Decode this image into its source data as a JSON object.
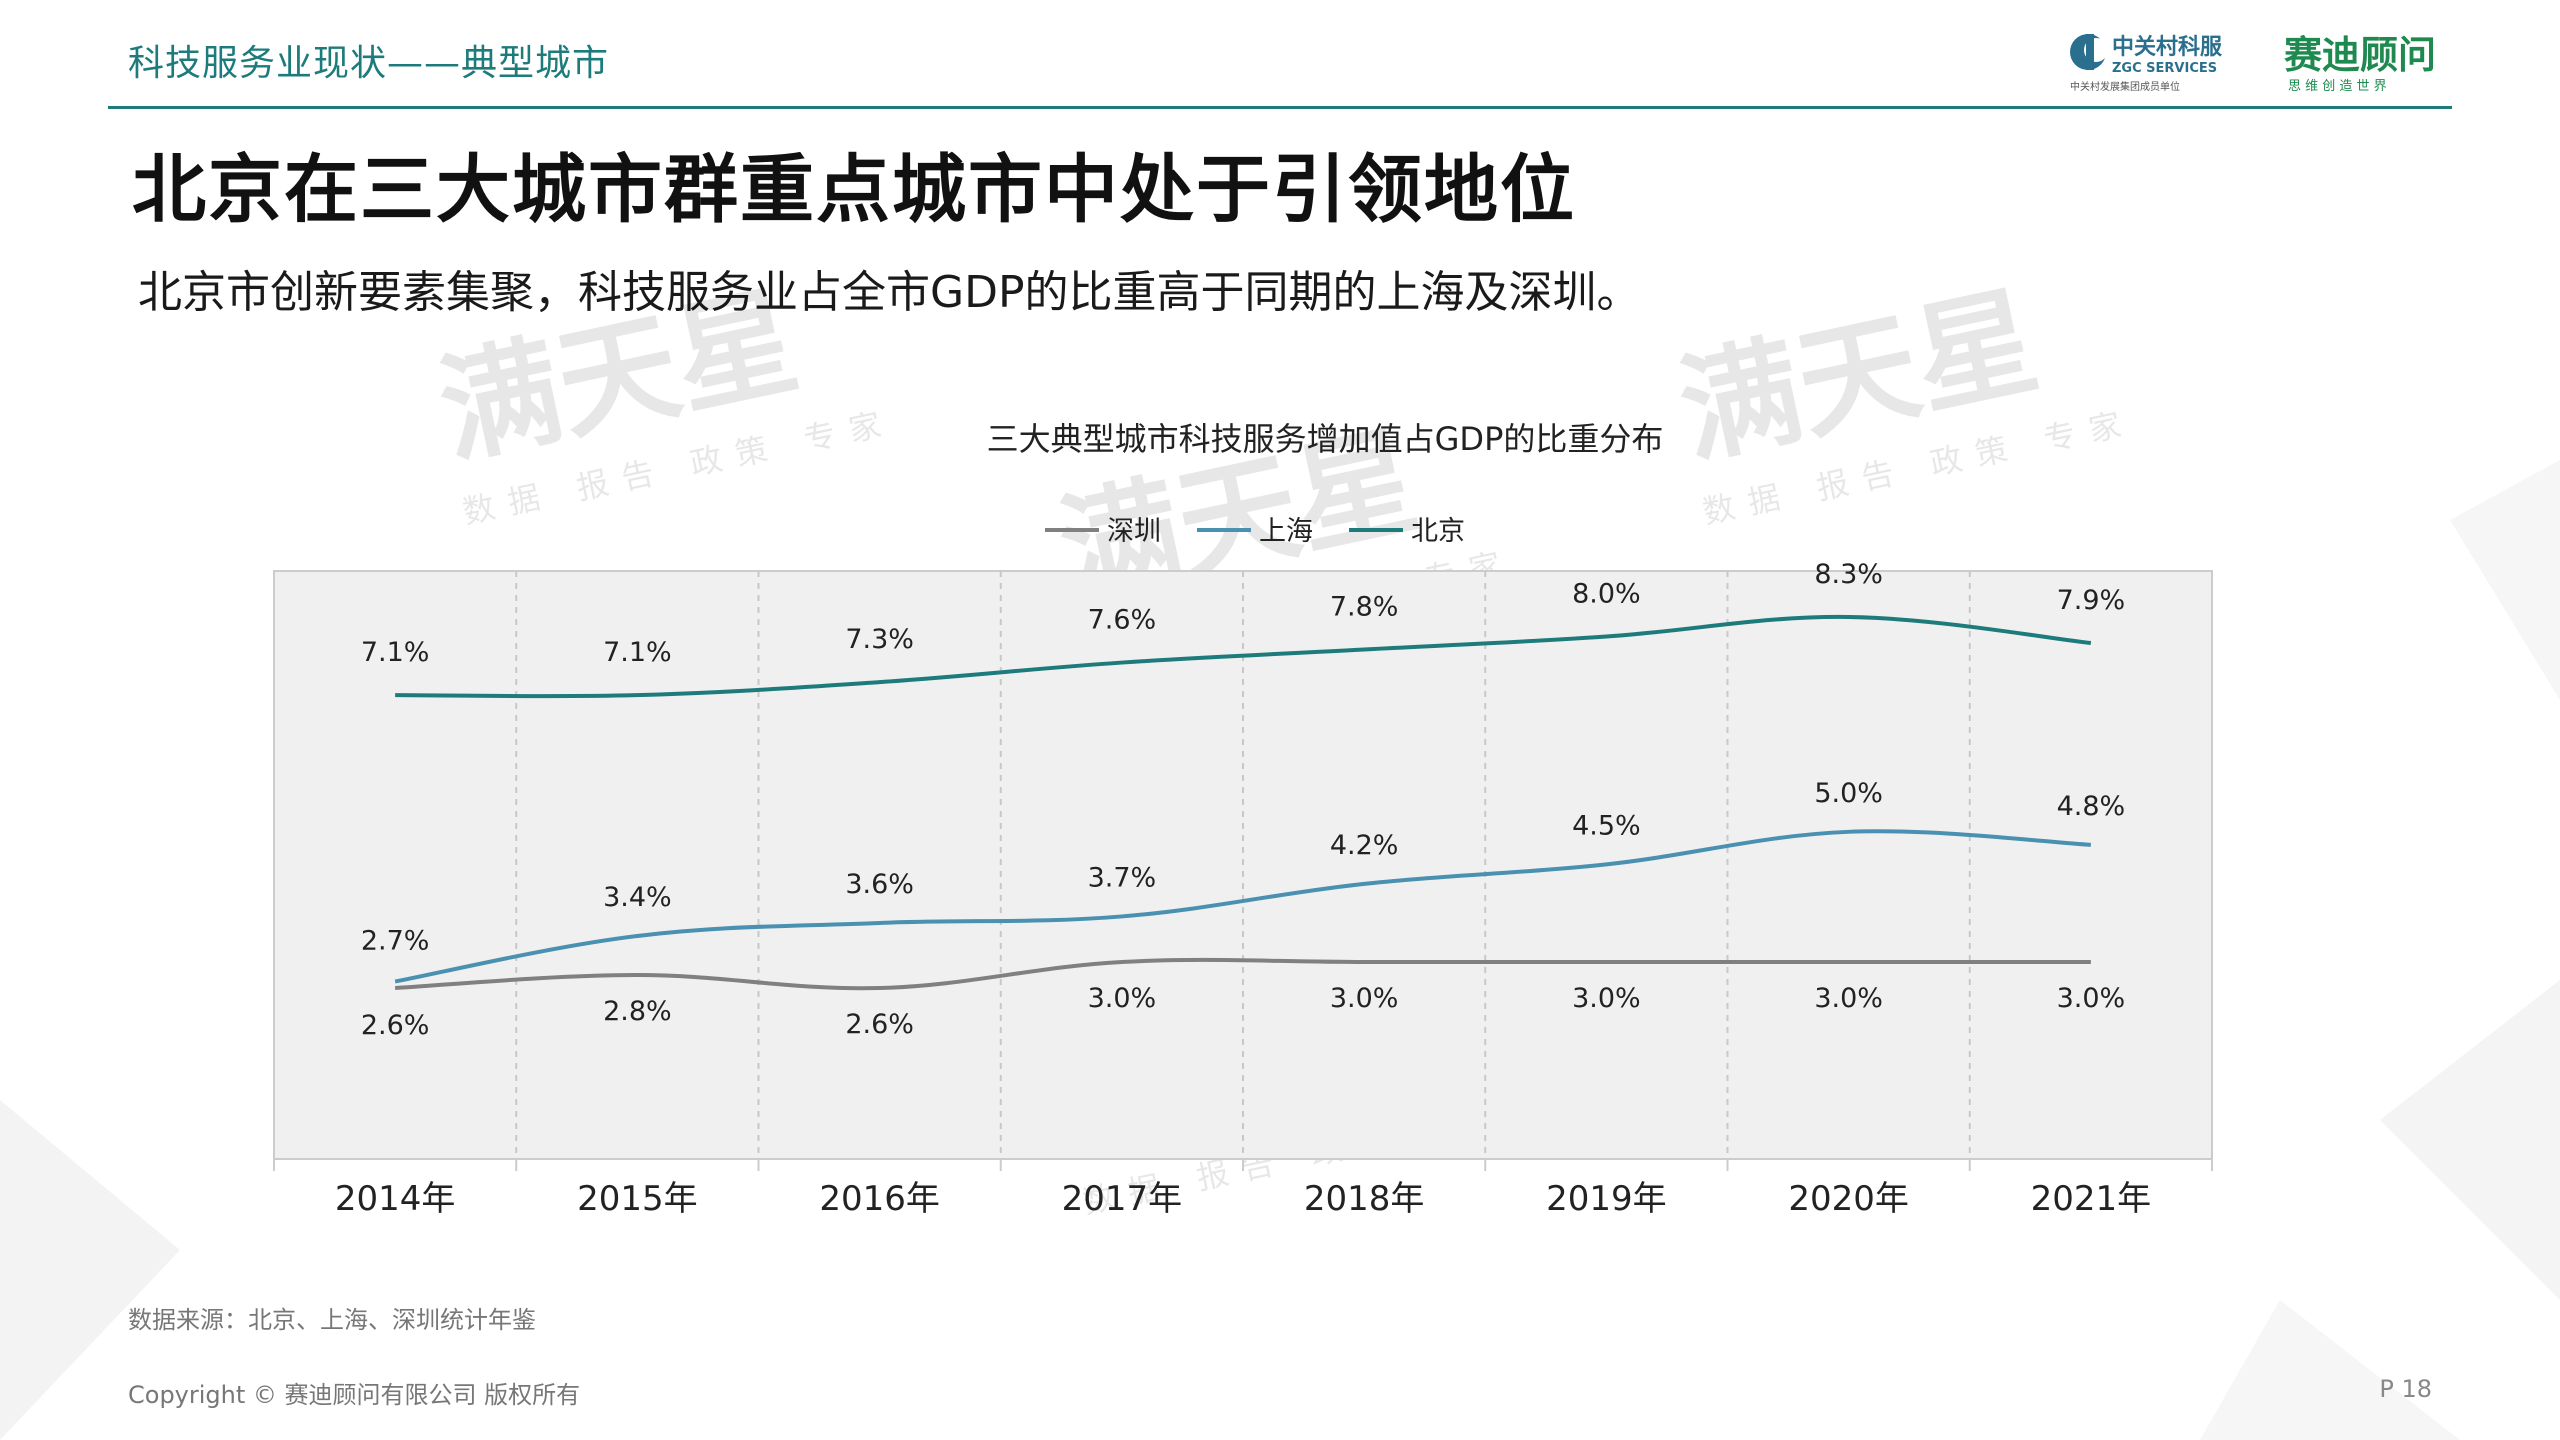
{
  "header": {
    "section_title": "科技服务业现状——典型城市",
    "logo_zgc_name": "中关村科服",
    "logo_zgc_en": "ZGC SERVICES",
    "logo_zgc_sub": "中关村发展集团成员单位",
    "logo_ccid_name": "赛迪顾问",
    "logo_ccid_slogan": "思 维 创 造 世 界"
  },
  "slide": {
    "title": "北京在三大城市群重点城市中处于引领地位",
    "subtitle": "北京市创新要素集聚，科技服务业占全市GDP的比重高于同期的上海及深圳。"
  },
  "watermark": {
    "main": "满天星",
    "sub": "数据 报告 政策 专家"
  },
  "chart_data": {
    "type": "line",
    "title": "三大典型城市科技服务增加值占GDP的比重分布",
    "categories": [
      "2014年",
      "2015年",
      "2016年",
      "2017年",
      "2018年",
      "2019年",
      "2020年",
      "2021年"
    ],
    "series": [
      {
        "name": "深圳",
        "color": "#808080",
        "values": [
          2.6,
          2.8,
          2.6,
          3.0,
          3.0,
          3.0,
          3.0,
          3.0
        ],
        "labels": [
          "2.6%",
          "2.8%",
          "2.6%",
          "3.0%",
          "3.0%",
          "3.0%",
          "3.0%",
          "3.0%"
        ]
      },
      {
        "name": "上海",
        "color": "#4a90b0",
        "values": [
          2.7,
          3.4,
          3.6,
          3.7,
          4.2,
          4.5,
          5.0,
          4.8
        ],
        "labels": [
          "2.7%",
          "3.4%",
          "3.6%",
          "3.7%",
          "4.2%",
          "4.5%",
          "5.0%",
          "4.8%"
        ]
      },
      {
        "name": "北京",
        "color": "#1e7b7b",
        "values": [
          7.1,
          7.1,
          7.3,
          7.6,
          7.8,
          8.0,
          8.3,
          7.9
        ],
        "labels": [
          "7.1%",
          "7.1%",
          "7.3%",
          "7.6%",
          "7.8%",
          "8.0%",
          "8.3%",
          "7.9%"
        ]
      }
    ],
    "ylim": [
      0,
      10
    ],
    "legend_position": "top-center",
    "grid": "vertical-dashed",
    "plot_background": "#f0f0f0"
  },
  "footer": {
    "source": "数据来源：北京、上海、深圳统计年鉴",
    "copyright": "Copyright © 赛迪顾问有限公司 版权所有",
    "page": "P 18"
  }
}
